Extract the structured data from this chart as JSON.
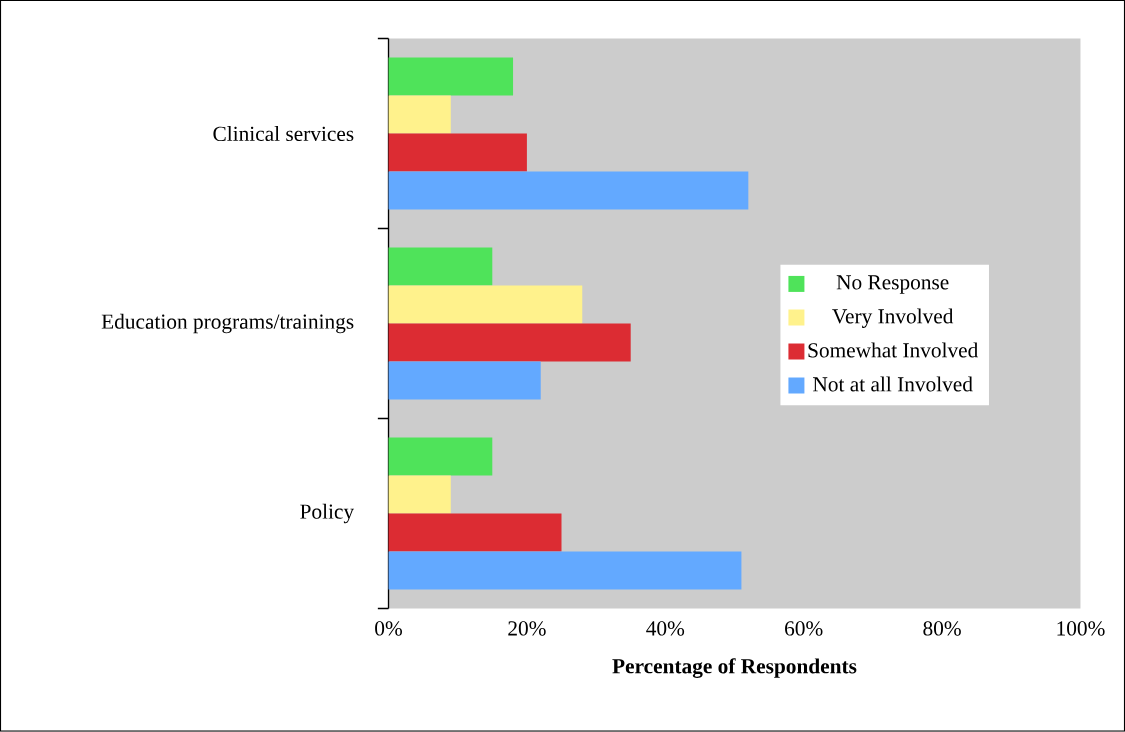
{
  "chart_data": {
    "type": "bar",
    "orientation": "horizontal",
    "xlabel": "Percentage of Respondents",
    "categories": [
      "Clinical services",
      "Education programs/trainings",
      "Policy"
    ],
    "series": [
      {
        "name": "No Response",
        "color": "#4fe35a",
        "values": [
          18,
          15,
          15
        ]
      },
      {
        "name": "Very Involved",
        "color": "#fff28c",
        "values": [
          9,
          28,
          9
        ]
      },
      {
        "name": "Somewhat Involved",
        "color": "#dc2c33",
        "values": [
          20,
          35,
          25
        ]
      },
      {
        "name": "Not at all Involved",
        "color": "#63a9ff",
        "values": [
          52,
          22,
          51
        ]
      }
    ],
    "xlim": [
      0,
      100
    ],
    "xticks": [
      {
        "value": 0,
        "label": "0%"
      },
      {
        "value": 20,
        "label": "20%"
      },
      {
        "value": 40,
        "label": "40%"
      },
      {
        "value": 60,
        "label": "60%"
      },
      {
        "value": 80,
        "label": "80%"
      },
      {
        "value": 100,
        "label": "100%"
      }
    ],
    "legend": "right",
    "grid": false
  }
}
